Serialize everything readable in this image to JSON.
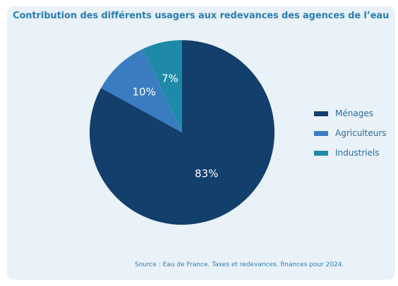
{
  "chart_data": {
    "type": "pie",
    "title": "Contribution des différents usagers aux redevances des agences de l’eau",
    "categories": [
      "Ménages",
      "Agriculteurs",
      "Industriels"
    ],
    "values": [
      83,
      10,
      7
    ],
    "labels": [
      "83%",
      "10%",
      "7%"
    ],
    "colors": [
      "#123f6b",
      "#3a7cc0",
      "#1f8aa8"
    ],
    "legend_position": "right",
    "source": "Source : Eau de France. Taxes et redevances. finances pour 2024."
  },
  "colors": {
    "title": "#2a7fb0",
    "background": "#e9f1f9",
    "label_text": "#ffffff"
  }
}
